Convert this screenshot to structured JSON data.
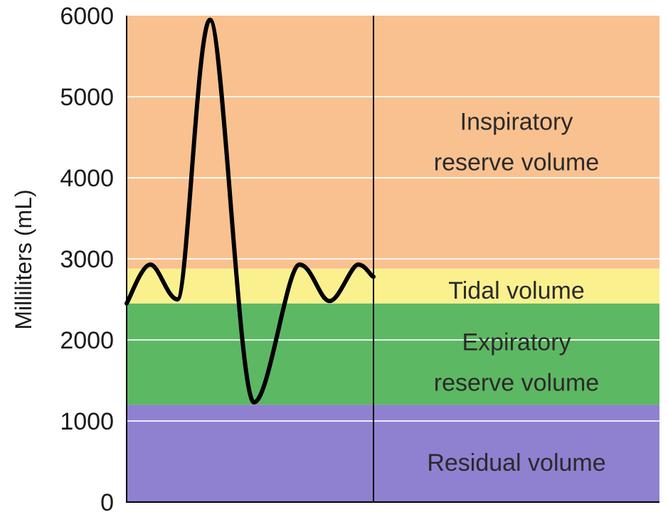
{
  "chart_data": {
    "type": "area",
    "ylabel": "Milliliters (mL)",
    "xlabel": "",
    "ylim": [
      0,
      6000
    ],
    "yticks": [
      "0",
      "1000",
      "2000",
      "3000",
      "4000",
      "5000",
      "6000"
    ],
    "grid": true,
    "zones": [
      {
        "id": "residual",
        "label_lines": [
          "Residual volume"
        ],
        "from": 0,
        "to": 1200,
        "color": "#9080d0"
      },
      {
        "id": "expiratory",
        "label_lines": [
          "Expiratory",
          "reserve volume"
        ],
        "from": 1200,
        "to": 2450,
        "color": "#5db863"
      },
      {
        "id": "tidal",
        "label_lines": [
          "Tidal volume"
        ],
        "from": 2450,
        "to": 2880,
        "color": "#faf08e"
      },
      {
        "id": "inspiratory",
        "label_lines": [
          "Inspiratory",
          "reserve volume"
        ],
        "from": 2880,
        "to": 6000,
        "color": "#f9c18f"
      }
    ],
    "series": [
      {
        "values": [
          [
            0,
            2450
          ],
          [
            4.8,
            2930
          ],
          [
            10.3,
            2500
          ],
          [
            16.9,
            5950
          ],
          [
            25.8,
            1230
          ],
          [
            35,
            2930
          ],
          [
            41.1,
            2480
          ],
          [
            46.9,
            2930
          ],
          [
            50,
            2780
          ]
        ]
      }
    ],
    "line_color": "#000000"
  }
}
